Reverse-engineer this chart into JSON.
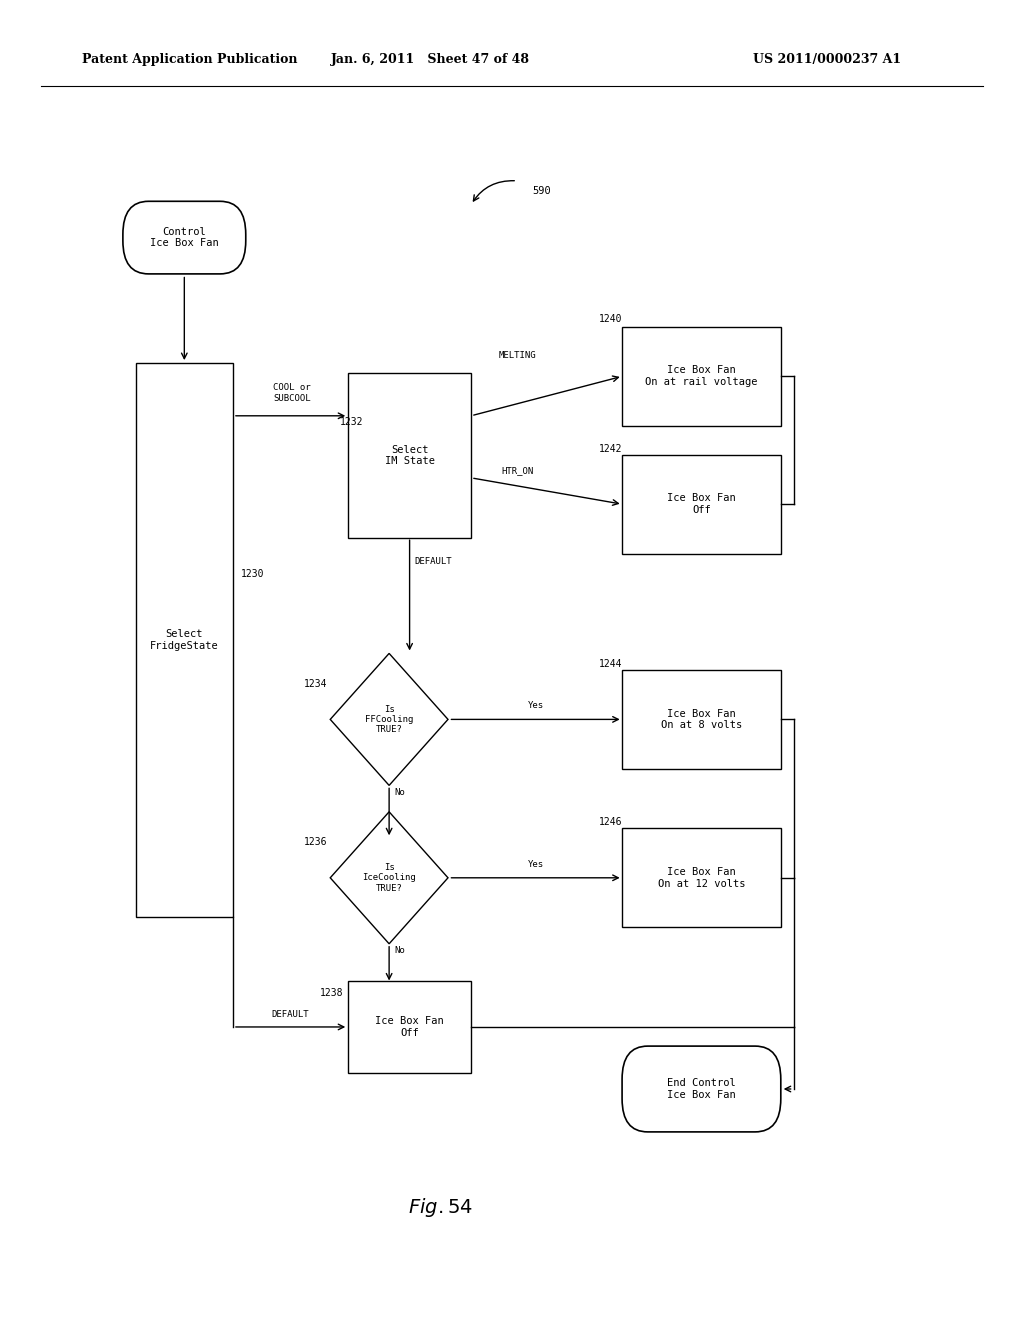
{
  "title_left": "Patent Application Publication",
  "title_mid": "Jan. 6, 2011   Sheet 47 of 48",
  "title_right": "US 2011/0000237 A1",
  "fig_label": "Fig. 54",
  "ref_590": "590",
  "background_color": "#ffffff",
  "line_color": "#000000",
  "text_color": "#000000",
  "font_size": 7.5,
  "header_font_size": 9
}
